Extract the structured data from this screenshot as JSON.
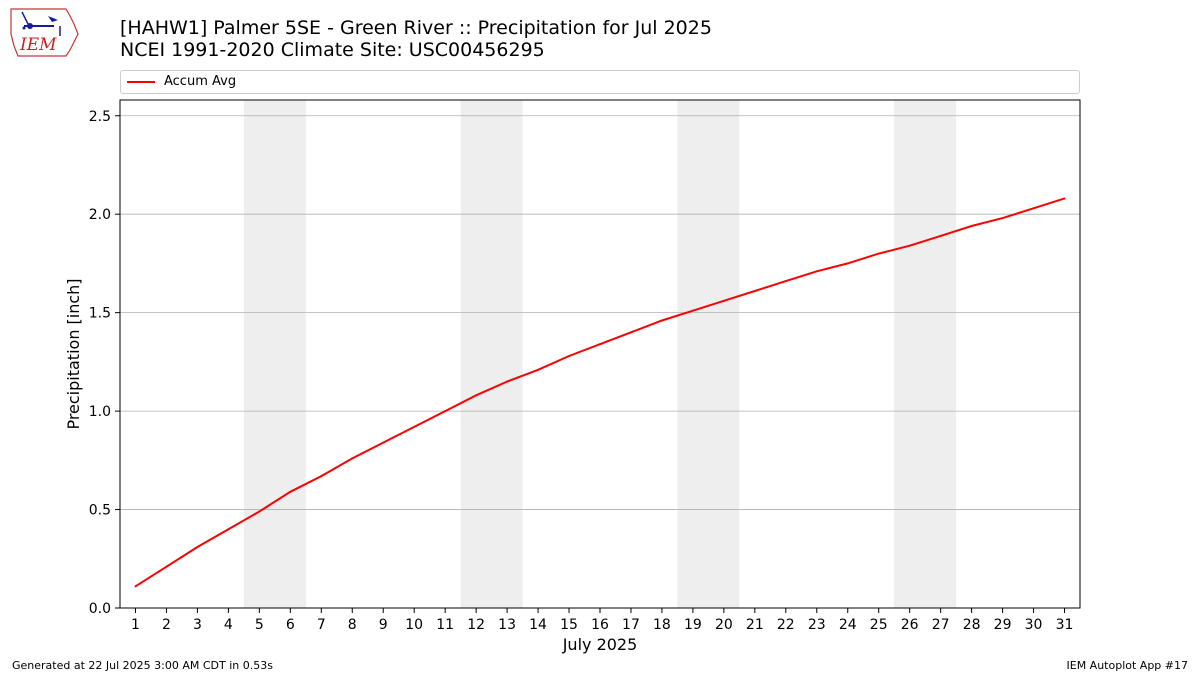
{
  "logo": {
    "text": "IEM"
  },
  "header": {
    "title": "[HAHW1] Palmer 5SE - Green River :: Precipitation for Jul 2025",
    "subtitle": "NCEI 1991-2020 Climate Site: USC00456295"
  },
  "footer": {
    "generated": "Generated at 22 Jul 2025 3:00 AM CDT in 0.53s",
    "app": "IEM Autoplot App #17"
  },
  "colors": {
    "line": "#ff0000",
    "weekend_band": "#eeeeee",
    "grid": "#b0b0b0"
  },
  "chart_data": {
    "type": "line",
    "xlabel": "July 2025",
    "ylabel": "Precipitation [inch]",
    "xlim": [
      0.5,
      31.5
    ],
    "ylim": [
      0,
      2.58
    ],
    "yticks": [
      0.0,
      0.5,
      1.0,
      1.5,
      2.0,
      2.5
    ],
    "ytick_labels": [
      "0.0",
      "0.5",
      "1.0",
      "1.5",
      "2.0",
      "2.5"
    ],
    "grid": "y",
    "legend": "top",
    "shaded_days": [
      [
        5,
        6
      ],
      [
        12,
        13
      ],
      [
        19,
        20
      ],
      [
        26,
        27
      ]
    ],
    "x": [
      1,
      2,
      3,
      4,
      5,
      6,
      7,
      8,
      9,
      10,
      11,
      12,
      13,
      14,
      15,
      16,
      17,
      18,
      19,
      20,
      21,
      22,
      23,
      24,
      25,
      26,
      27,
      28,
      29,
      30,
      31
    ],
    "series": [
      {
        "name": "Accum Avg",
        "color": "#ff0000",
        "values": [
          0.11,
          0.21,
          0.31,
          0.4,
          0.49,
          0.59,
          0.67,
          0.76,
          0.84,
          0.92,
          1.0,
          1.08,
          1.15,
          1.21,
          1.28,
          1.34,
          1.4,
          1.46,
          1.51,
          1.56,
          1.61,
          1.66,
          1.71,
          1.75,
          1.8,
          1.84,
          1.89,
          1.94,
          1.98,
          2.03,
          2.08
        ]
      }
    ]
  }
}
